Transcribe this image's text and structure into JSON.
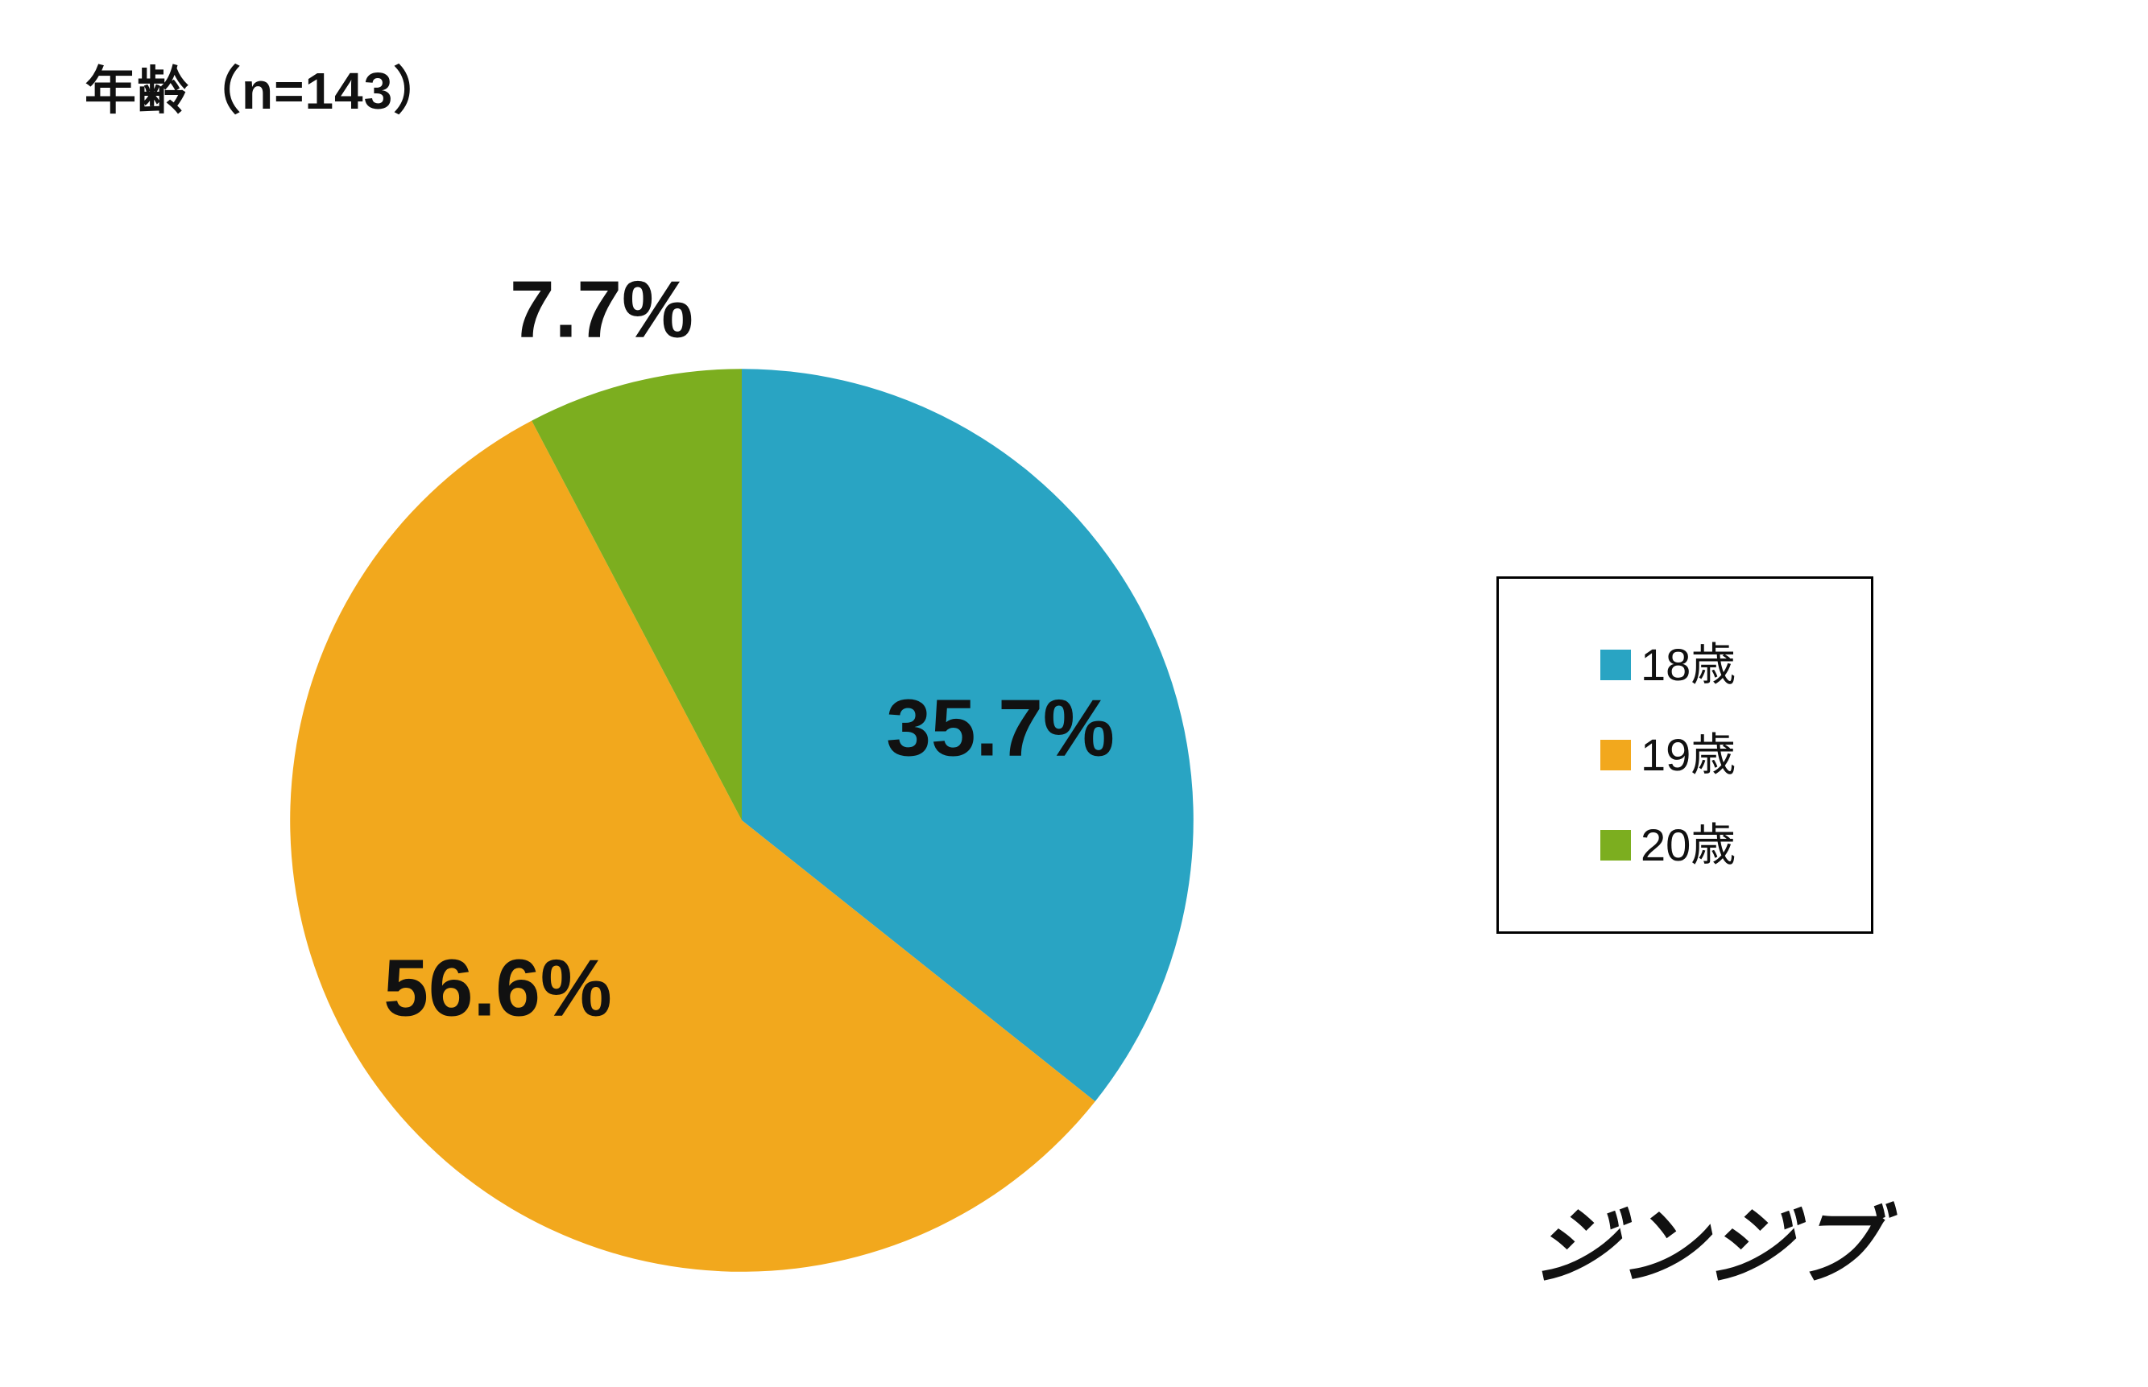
{
  "page": {
    "background": "#ffffff"
  },
  "chart_data": {
    "type": "pie",
    "title": "年齢（n=143）",
    "sample_size": 143,
    "categories": [
      "18歳",
      "19歳",
      "20歳"
    ],
    "values": [
      35.7,
      56.6,
      7.7
    ],
    "unit": "%",
    "data_labels": [
      "35.7%",
      "56.6%",
      "7.7%"
    ],
    "colors": [
      "#29A4C3",
      "#F2A81D",
      "#7CAE1F"
    ],
    "start_angle": "top",
    "direction": "clockwise",
    "legend_position": "right",
    "grid": false
  },
  "legend": {
    "items": [
      {
        "label": "18歳",
        "color": "#29A4C3"
      },
      {
        "label": "19歳",
        "color": "#F2A81D"
      },
      {
        "label": "20歳",
        "color": "#7CAE1F"
      }
    ]
  },
  "logo_text": "ジンジブ"
}
